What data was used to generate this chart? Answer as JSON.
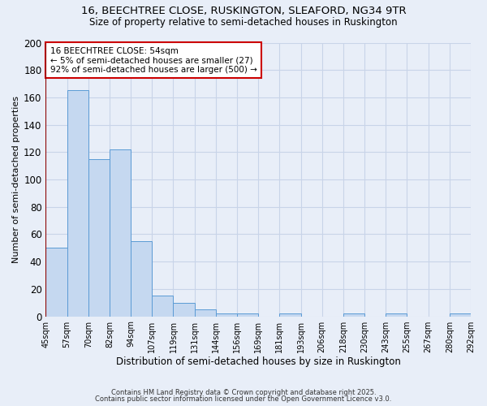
{
  "title_line1": "16, BEECHTREE CLOSE, RUSKINGTON, SLEAFORD, NG34 9TR",
  "title_line2": "Size of property relative to semi-detached houses in Ruskington",
  "xlabel": "Distribution of semi-detached houses by size in Ruskington",
  "ylabel": "Number of semi-detached properties",
  "bin_labels": [
    "45sqm",
    "57sqm",
    "70sqm",
    "82sqm",
    "94sqm",
    "107sqm",
    "119sqm",
    "131sqm",
    "144sqm",
    "156sqm",
    "169sqm",
    "181sqm",
    "193sqm",
    "206sqm",
    "218sqm",
    "230sqm",
    "243sqm",
    "255sqm",
    "267sqm",
    "280sqm",
    "292sqm"
  ],
  "bar_heights": [
    50,
    165,
    115,
    122,
    55,
    15,
    10,
    5,
    2,
    2,
    0,
    2,
    0,
    0,
    2,
    0,
    2,
    0,
    0,
    2
  ],
  "bar_color": "#c5d8f0",
  "bar_edge_color": "#5b9bd5",
  "red_line_x": 0,
  "annotation_title": "16 BEECHTREE CLOSE: 54sqm",
  "annotation_line1": "← 5% of semi-detached houses are smaller (27)",
  "annotation_line2": "92% of semi-detached houses are larger (500) →",
  "annotation_box_color": "#ffffff",
  "annotation_box_edge": "#cc0000",
  "red_line_color": "#8b0000",
  "ylim": [
    0,
    200
  ],
  "yticks": [
    0,
    20,
    40,
    60,
    80,
    100,
    120,
    140,
    160,
    180,
    200
  ],
  "grid_color": "#c8d4e8",
  "footnote_line1": "Contains HM Land Registry data © Crown copyright and database right 2025.",
  "footnote_line2": "Contains public sector information licensed under the Open Government Licence v3.0.",
  "bg_color": "#e8eef8"
}
